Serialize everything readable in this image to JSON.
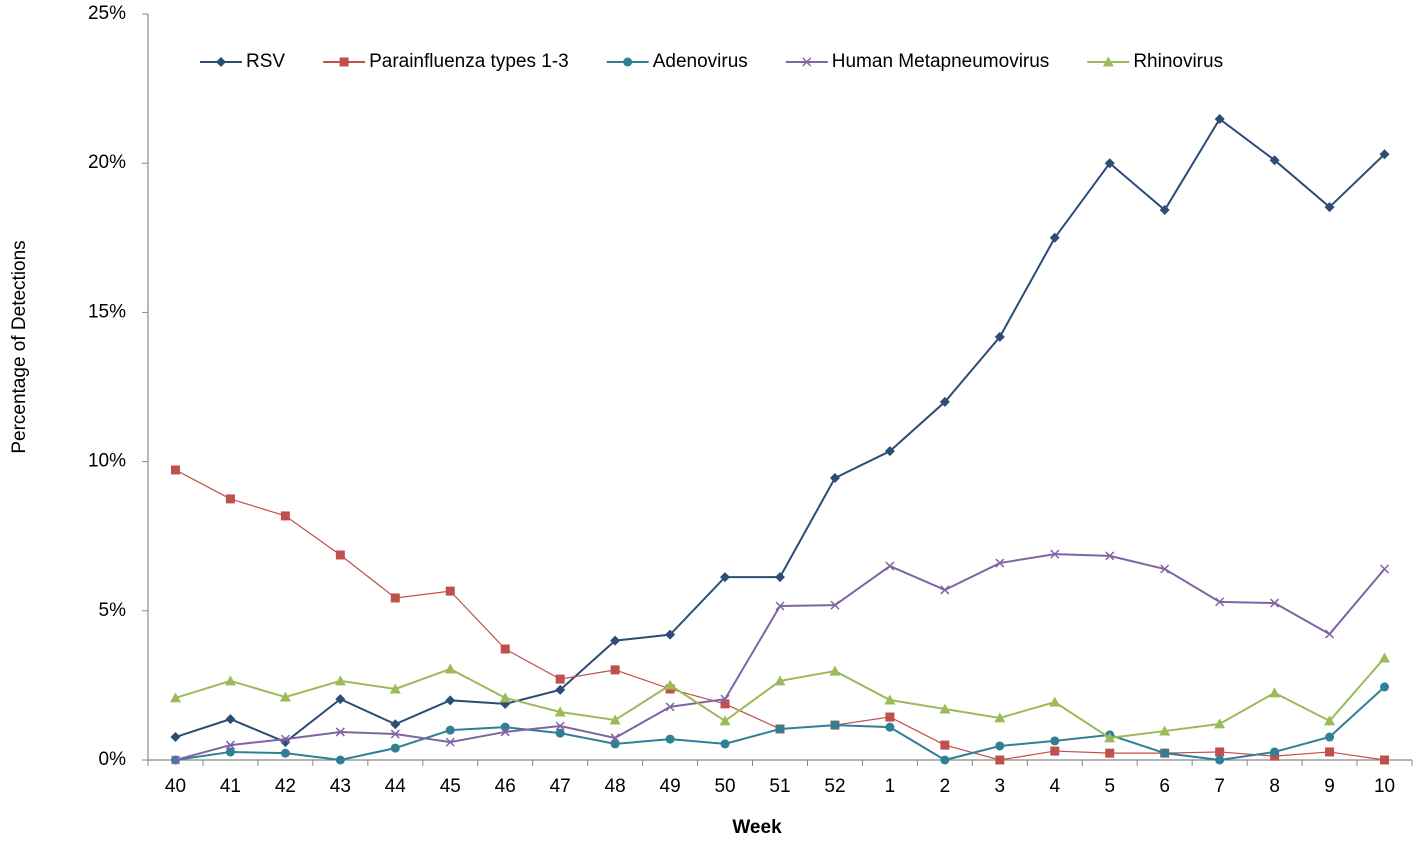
{
  "chart_data": {
    "type": "line",
    "x_label": "Week",
    "y_label": "Percentage of Detections",
    "categories": [
      "40",
      "41",
      "42",
      "43",
      "44",
      "45",
      "46",
      "47",
      "48",
      "49",
      "50",
      "51",
      "52",
      "1",
      "2",
      "3",
      "4",
      "5",
      "6",
      "7",
      "8",
      "9",
      "10"
    ],
    "ylim": [
      0,
      25
    ],
    "yticks": [
      {
        "value": 0,
        "label": "0%"
      },
      {
        "value": 5,
        "label": "5%"
      },
      {
        "value": 10,
        "label": "10%"
      },
      {
        "value": 15,
        "label": "15%"
      },
      {
        "value": 20,
        "label": "20%"
      },
      {
        "value": 25,
        "label": "25%"
      }
    ],
    "grid": false,
    "legend": "top",
    "series": [
      {
        "name": "RSV",
        "color": "#2c4d75",
        "marker": "diamond",
        "values": [
          0.77,
          1.37,
          0.6,
          2.04,
          1.2,
          2.0,
          1.88,
          2.35,
          4.0,
          4.2,
          6.13,
          6.13,
          9.45,
          10.35,
          12.0,
          14.18,
          17.5,
          20.0,
          18.43,
          21.48,
          20.1,
          18.53,
          20.3
        ]
      },
      {
        "name": "Parainfluenza types 1-3",
        "color": "#c0504d",
        "marker": "square",
        "values": [
          9.72,
          8.75,
          8.18,
          6.87,
          5.43,
          5.66,
          3.72,
          2.71,
          3.02,
          2.38,
          1.88,
          1.04,
          1.17,
          1.44,
          0.5,
          0,
          0.3,
          0.23,
          0.23,
          0.27,
          0.13,
          0.27,
          0
        ]
      },
      {
        "name": "Adenovirus",
        "color": "#2f8096",
        "marker": "circle",
        "values": [
          0,
          0.27,
          0.23,
          0,
          0.4,
          1.0,
          1.1,
          0.9,
          0.54,
          0.7,
          0.54,
          1.04,
          1.17,
          1.1,
          0,
          0.47,
          0.64,
          0.84,
          0.23,
          0,
          0.27,
          0.77,
          2.45
        ]
      },
      {
        "name": "Human Metapneumovirus",
        "color": "#8064a2",
        "marker": "x",
        "values": [
          0,
          0.5,
          0.7,
          0.94,
          0.87,
          0.6,
          0.94,
          1.14,
          0.74,
          1.78,
          2.04,
          5.16,
          5.19,
          6.5,
          5.7,
          6.6,
          6.9,
          6.84,
          6.4,
          5.3,
          5.26,
          4.22,
          6.4
        ]
      },
      {
        "name": "Rhinovirus",
        "color": "#9bbb59",
        "marker": "triangle",
        "values": [
          2.08,
          2.65,
          2.11,
          2.65,
          2.38,
          3.05,
          2.08,
          1.61,
          1.34,
          2.51,
          1.31,
          2.65,
          2.98,
          2.01,
          1.71,
          1.41,
          1.94,
          0.74,
          0.97,
          1.21,
          2.25,
          1.31,
          3.42
        ]
      }
    ]
  }
}
